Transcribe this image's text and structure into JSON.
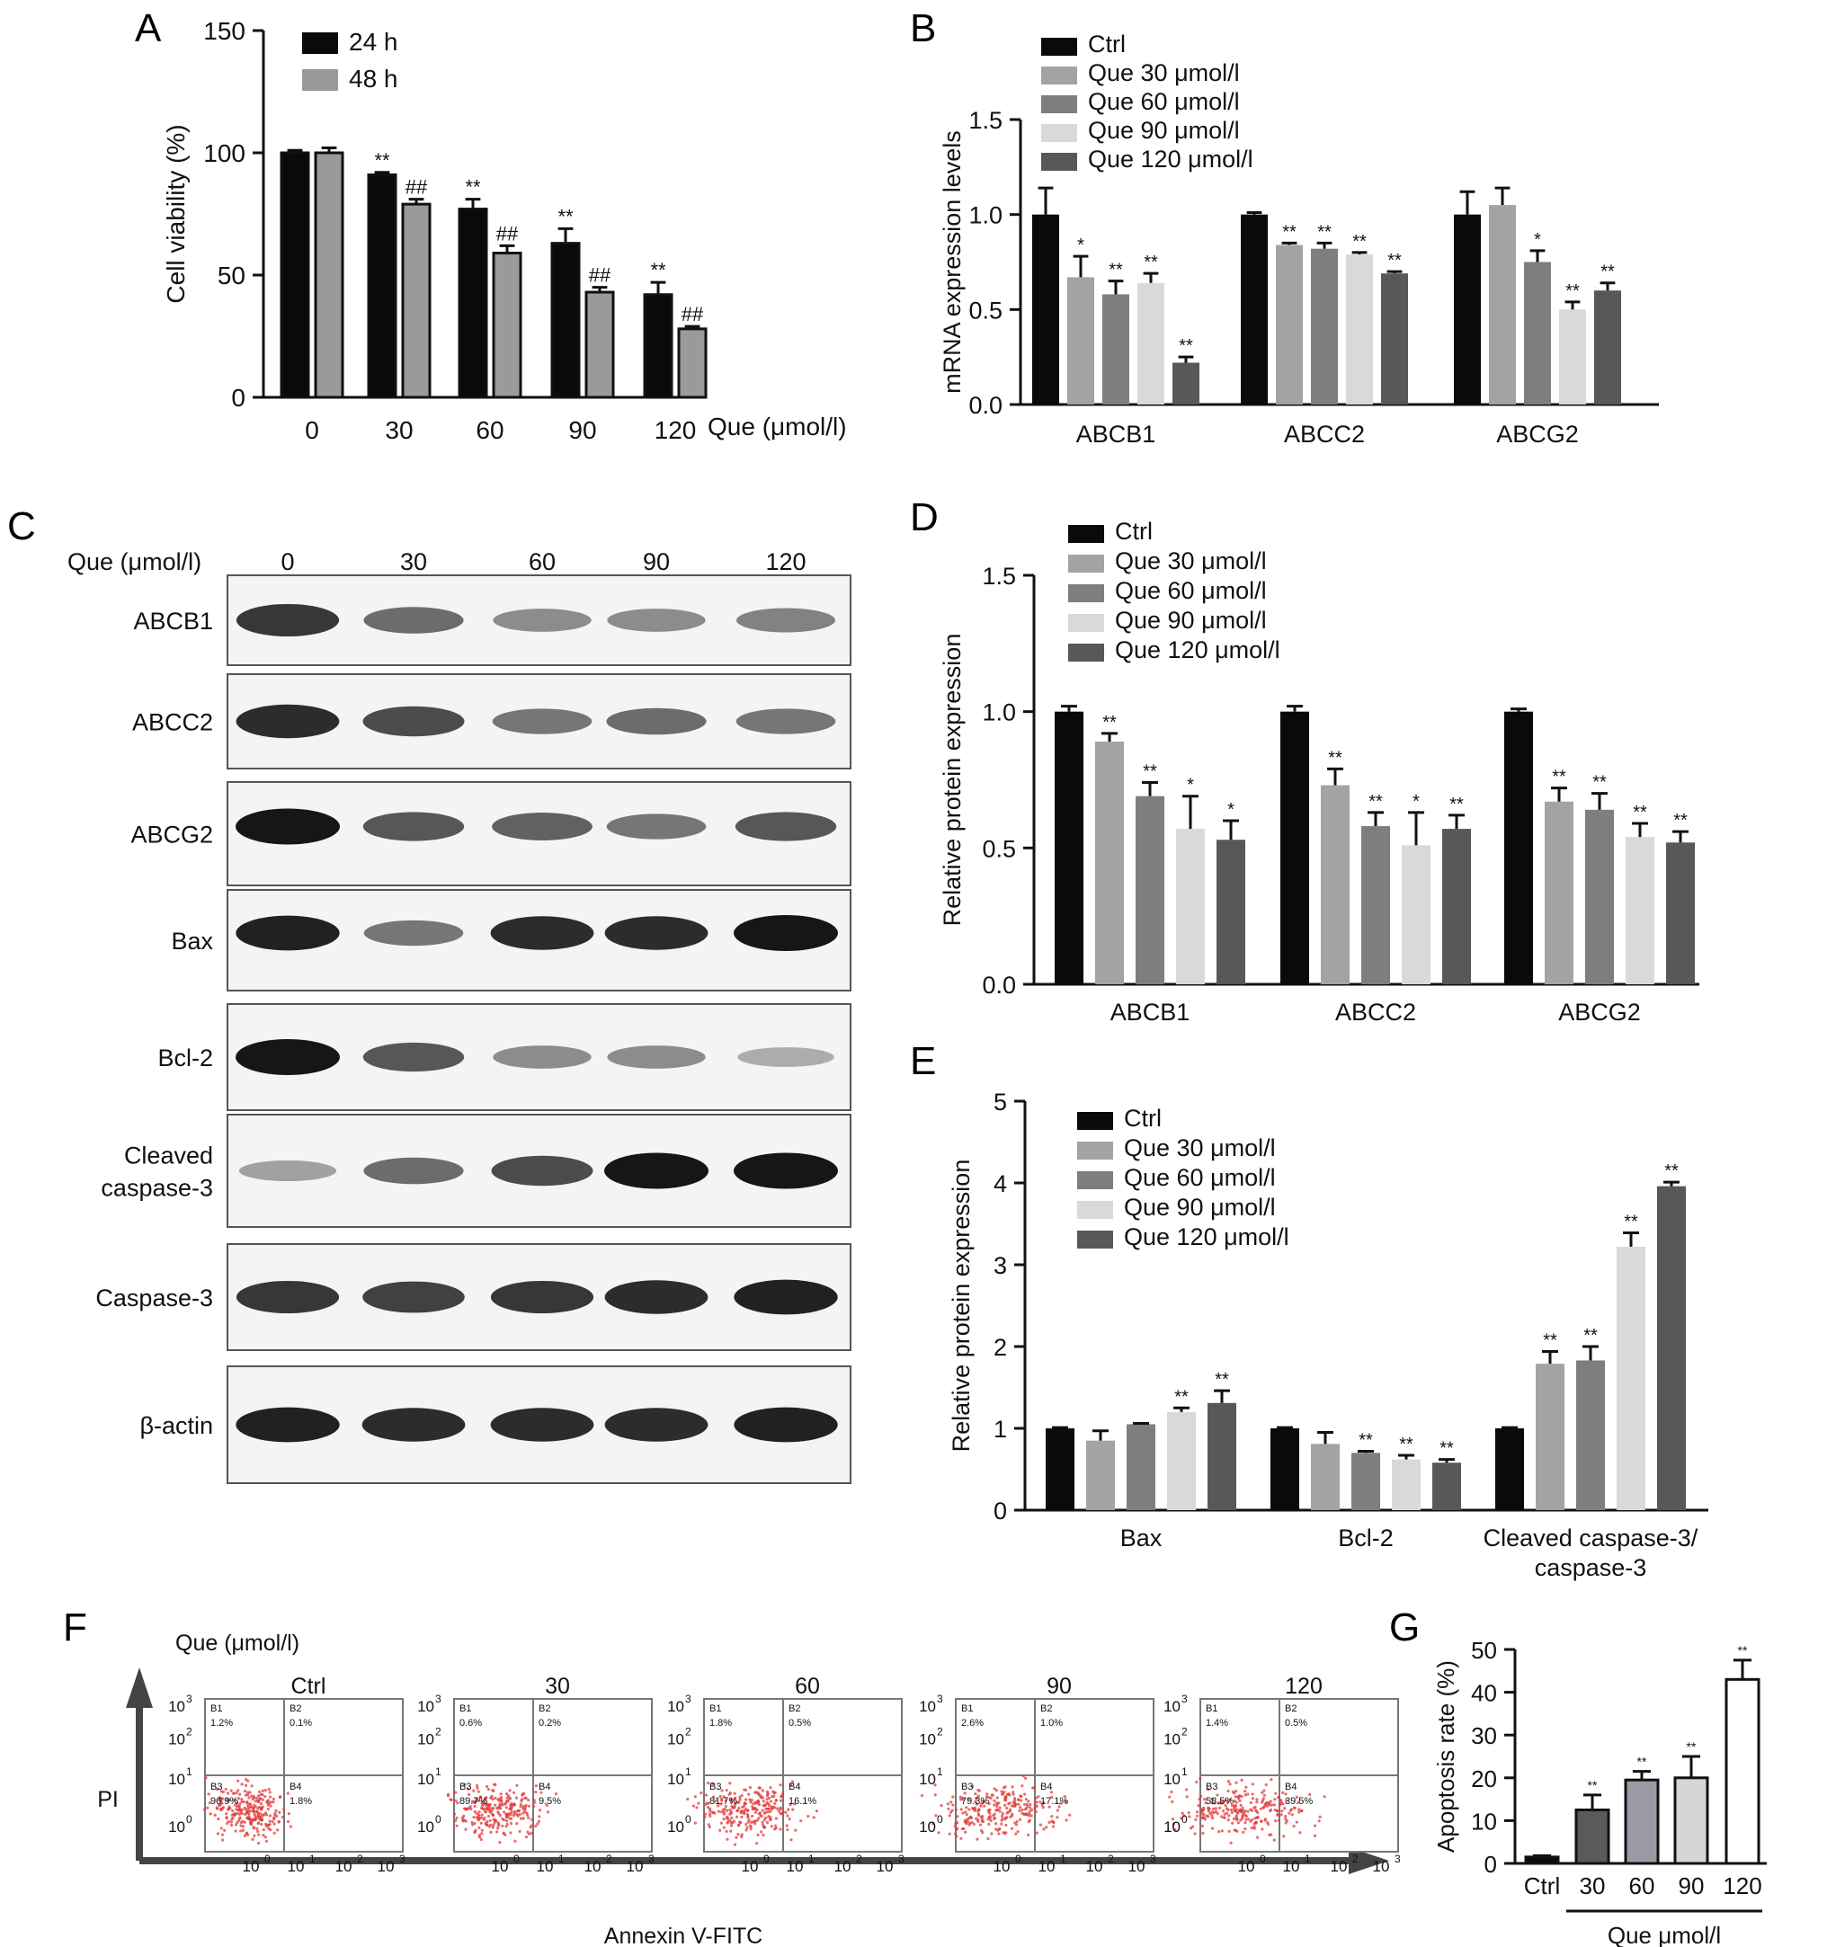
{
  "colors": {
    "black": "#0a0a0a",
    "gray48": "#9a9a9a",
    "que30": "#a3a3a3",
    "que60": "#7e7e7e",
    "que90": "#d9d9d9",
    "que120": "#585858",
    "g30": "#5a5a5a",
    "g60": "#9a9aa4",
    "g90": "#d6d6d6",
    "g120": "#ffffff",
    "dot": "#e23b3b"
  },
  "panel_letters": {
    "a": "A",
    "b": "B",
    "c": "C",
    "d": "D",
    "e": "E",
    "f": "F",
    "g": "G"
  },
  "chart_data": [
    {
      "id": "A",
      "type": "bar",
      "categories": [
        "0",
        "30",
        "60",
        "90",
        "120"
      ],
      "series": [
        {
          "name": "24 h",
          "values": [
            100,
            91,
            77,
            63,
            42
          ],
          "errors": [
            1,
            1,
            4,
            6,
            5
          ],
          "sig": [
            "",
            "**",
            "**",
            "**",
            "**"
          ]
        },
        {
          "name": "48 h",
          "values": [
            100,
            79,
            59,
            43,
            28
          ],
          "errors": [
            2,
            2,
            3,
            2,
            1
          ],
          "sig": [
            "",
            "##",
            "##",
            "##",
            "##"
          ]
        }
      ],
      "xlabel": "Que (μmol/l)",
      "ylabel": "Cell viability (%)",
      "yticks": [
        "0",
        "50",
        "100",
        "150"
      ],
      "ylim": [
        0,
        150
      ],
      "legend": "top-left"
    },
    {
      "id": "B",
      "type": "bar",
      "categories": [
        "ABCB1",
        "ABCC2",
        "ABCG2"
      ],
      "series": [
        {
          "name": "Ctrl",
          "values": [
            1.0,
            1.0,
            1.0
          ],
          "errors": [
            0.14,
            0.01,
            0.12
          ],
          "sig": [
            "",
            "",
            ""
          ]
        },
        {
          "name": "Que 30 μmol/l",
          "values": [
            0.67,
            0.84,
            1.05
          ],
          "errors": [
            0.11,
            0.01,
            0.09
          ],
          "sig": [
            "*",
            "**",
            ""
          ]
        },
        {
          "name": "Que 60 μmol/l",
          "values": [
            0.58,
            0.82,
            0.75
          ],
          "errors": [
            0.07,
            0.03,
            0.06
          ],
          "sig": [
            "**",
            "**",
            "*"
          ]
        },
        {
          "name": "Que 90 μmol/l",
          "values": [
            0.64,
            0.79,
            0.5
          ],
          "errors": [
            0.05,
            0.01,
            0.04
          ],
          "sig": [
            "**",
            "**",
            "**"
          ]
        },
        {
          "name": "Que 120 μmol/l",
          "values": [
            0.22,
            0.69,
            0.6
          ],
          "errors": [
            0.03,
            0.01,
            0.04
          ],
          "sig": [
            "**",
            "**",
            "**"
          ]
        }
      ],
      "ylabel": "mRNA expression levels",
      "yticks": [
        "0.0",
        "0.5",
        "1.0",
        "1.5"
      ],
      "ylim": [
        0,
        1.5
      ],
      "legend": "top-left"
    },
    {
      "id": "D",
      "type": "bar",
      "categories": [
        "ABCB1",
        "ABCC2",
        "ABCG2"
      ],
      "series": [
        {
          "name": "Ctrl",
          "values": [
            1.0,
            1.0,
            1.0
          ],
          "errors": [
            0.02,
            0.02,
            0.01
          ],
          "sig": [
            "",
            "",
            ""
          ]
        },
        {
          "name": "Que 30 μmol/l",
          "values": [
            0.89,
            0.73,
            0.67
          ],
          "errors": [
            0.03,
            0.06,
            0.05
          ],
          "sig": [
            "**",
            "**",
            "**"
          ]
        },
        {
          "name": "Que 60 μmol/l",
          "values": [
            0.69,
            0.58,
            0.64
          ],
          "errors": [
            0.05,
            0.05,
            0.06
          ],
          "sig": [
            "**",
            "**",
            "**"
          ]
        },
        {
          "name": "Que 90 μmol/l",
          "values": [
            0.57,
            0.51,
            0.54
          ],
          "errors": [
            0.12,
            0.12,
            0.05
          ],
          "sig": [
            "*",
            "*",
            "**"
          ]
        },
        {
          "name": "Que 120 μmol/l",
          "values": [
            0.53,
            0.57,
            0.52
          ],
          "errors": [
            0.07,
            0.05,
            0.04
          ],
          "sig": [
            "*",
            "**",
            "**"
          ]
        }
      ],
      "ylabel": "Relative protein expression",
      "yticks": [
        "0.0",
        "0.5",
        "1.0",
        "1.5"
      ],
      "ylim": [
        0,
        1.5
      ],
      "legend": "top-left"
    },
    {
      "id": "E",
      "type": "bar",
      "categories": [
        "Bax",
        "Bcl-2",
        "Cleaved caspase-3/\ncaspase-3"
      ],
      "series": [
        {
          "name": "Ctrl",
          "values": [
            1.0,
            1.0,
            1.0
          ],
          "errors": [
            0.01,
            0.01,
            0.01
          ],
          "sig": [
            "",
            "",
            ""
          ]
        },
        {
          "name": "Que 30 μmol/l",
          "values": [
            0.85,
            0.81,
            1.79
          ],
          "errors": [
            0.12,
            0.14,
            0.15
          ],
          "sig": [
            "",
            "",
            "**"
          ]
        },
        {
          "name": "Que 60 μmol/l",
          "values": [
            1.05,
            0.7,
            1.83
          ],
          "errors": [
            0.01,
            0.02,
            0.17
          ],
          "sig": [
            "",
            "**",
            "**"
          ]
        },
        {
          "name": "Que 90 μmol/l",
          "values": [
            1.2,
            0.62,
            3.22
          ],
          "errors": [
            0.05,
            0.05,
            0.17
          ],
          "sig": [
            "**",
            "**",
            "**"
          ]
        },
        {
          "name": "Que 120 μmol/l",
          "values": [
            1.31,
            0.58,
            3.96
          ],
          "errors": [
            0.15,
            0.04,
            0.05
          ],
          "sig": [
            "**",
            "**",
            "**"
          ]
        }
      ],
      "ylabel": "Relative protein expression",
      "yticks": [
        "0",
        "1",
        "2",
        "3",
        "4",
        "5"
      ],
      "ylim": [
        0,
        5
      ],
      "legend": "top-left"
    },
    {
      "id": "G",
      "type": "bar",
      "categories": [
        "Ctrl",
        "30",
        "60",
        "90",
        "120"
      ],
      "values": [
        1.5,
        12.5,
        19.5,
        20.0,
        43.0
      ],
      "errors": [
        0.3,
        3.5,
        2.0,
        5.0,
        4.5
      ],
      "sig": [
        "",
        "**",
        "**",
        "**",
        "**"
      ],
      "ylabel": "Apoptosis rate (%)",
      "xlabel": "Que μmol/l",
      "yticks": [
        "0",
        "10",
        "20",
        "30",
        "40",
        "50"
      ],
      "ylim": [
        0,
        50
      ]
    }
  ],
  "blot": {
    "header_label": "Que (μmol/l)",
    "lanes": [
      "0",
      "30",
      "60",
      "90",
      "120"
    ],
    "rows": [
      {
        "label": "ABCB1",
        "intensity": [
          0.85,
          0.6,
          0.45,
          0.45,
          0.5
        ]
      },
      {
        "label": "ABCC2",
        "intensity": [
          0.9,
          0.75,
          0.55,
          0.6,
          0.55
        ]
      },
      {
        "label": "ABCG2",
        "intensity": [
          1.0,
          0.7,
          0.65,
          0.55,
          0.7
        ]
      },
      {
        "label": "Bax",
        "intensity": [
          0.95,
          0.55,
          0.9,
          0.9,
          1.0
        ]
      },
      {
        "label": "Bcl-2",
        "intensity": [
          1.0,
          0.7,
          0.45,
          0.45,
          0.3
        ]
      },
      {
        "label": "Cleaved\ncaspase-3",
        "intensity": [
          0.35,
          0.6,
          0.75,
          1.0,
          1.0
        ]
      },
      {
        "label": "Caspase-3",
        "intensity": [
          0.85,
          0.8,
          0.85,
          0.9,
          0.95
        ]
      },
      {
        "label": "β-actin",
        "intensity": [
          0.95,
          0.9,
          0.9,
          0.9,
          0.95
        ]
      }
    ]
  },
  "flow": {
    "header_label": "Que (μmol/l)",
    "y_axis_label": "PI",
    "x_axis_label": "Annexin V-FITC",
    "quadrant_names": [
      "B1",
      "B2",
      "B3",
      "B4"
    ],
    "panels": [
      {
        "title": "Ctrl",
        "b1": "1.2%",
        "b2": "0.1%",
        "b3": "96.9%",
        "b4": "1.8%"
      },
      {
        "title": "30",
        "b1": "0.6%",
        "b2": "0.2%",
        "b3": "89.7%",
        "b4": "9.5%"
      },
      {
        "title": "60",
        "b1": "1.8%",
        "b2": "0.5%",
        "b3": "81.7%",
        "b4": "16.1%"
      },
      {
        "title": "90",
        "b1": "2.6%",
        "b2": "1.0%",
        "b3": "79.3%",
        "b4": "17.1%"
      },
      {
        "title": "120",
        "b1": "1.4%",
        "b2": "0.5%",
        "b3": "58.5%",
        "b4": "39.5%"
      }
    ],
    "axis_ticks": [
      "10",
      "10",
      "10",
      "10"
    ],
    "axis_exponents": [
      "0",
      "1",
      "2",
      "3"
    ]
  }
}
